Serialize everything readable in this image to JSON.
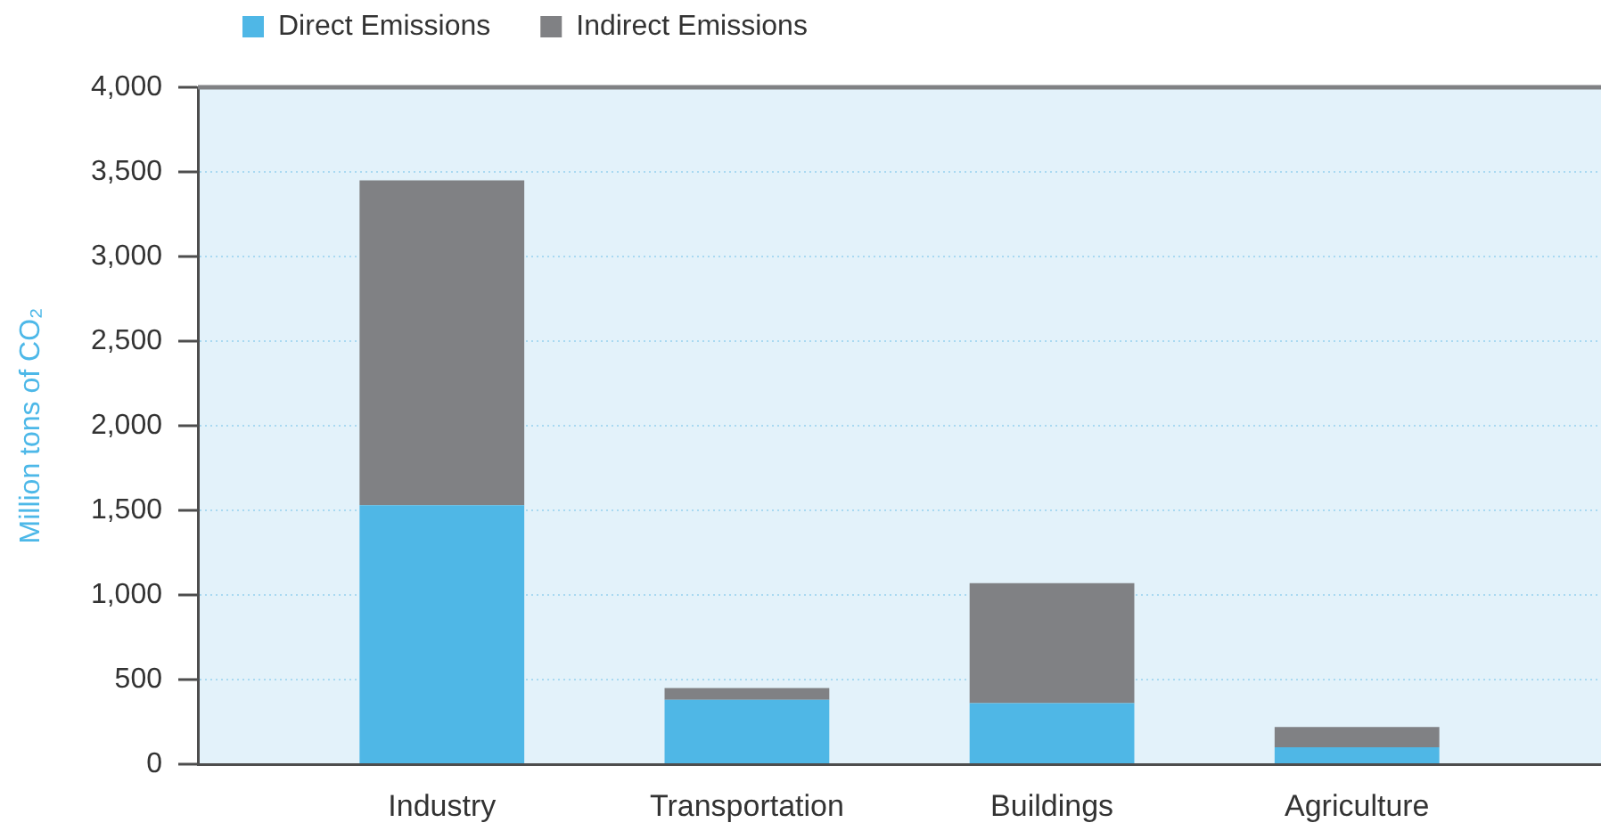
{
  "chart_data": {
    "type": "bar",
    "categories": [
      "Industry",
      "Transportation",
      "Buildings",
      "Agriculture"
    ],
    "series": [
      {
        "name": "Direct Emissions",
        "color": "#4fb7e6",
        "values": [
          1530,
          380,
          360,
          100
        ]
      },
      {
        "name": "Indirect Emissions",
        "color": "#808184",
        "values": [
          1920,
          70,
          710,
          120
        ]
      }
    ],
    "stacked": true,
    "ylabel": "Million tons of CO₂",
    "ylim": [
      0,
      4000
    ],
    "yticks": [
      0,
      500,
      {
        "value": 1000,
        "label": "1,000"
      },
      {
        "value": 1500,
        "label": "1,500"
      },
      {
        "value": 2000,
        "label": "2,000"
      },
      {
        "value": 2500,
        "label": "2,500"
      },
      {
        "value": 3000,
        "label": "3,000"
      },
      {
        "value": 3500,
        "label": "3,500"
      },
      {
        "value": 4000,
        "label": "4,000"
      }
    ],
    "grid": "y",
    "legend": "top left"
  }
}
